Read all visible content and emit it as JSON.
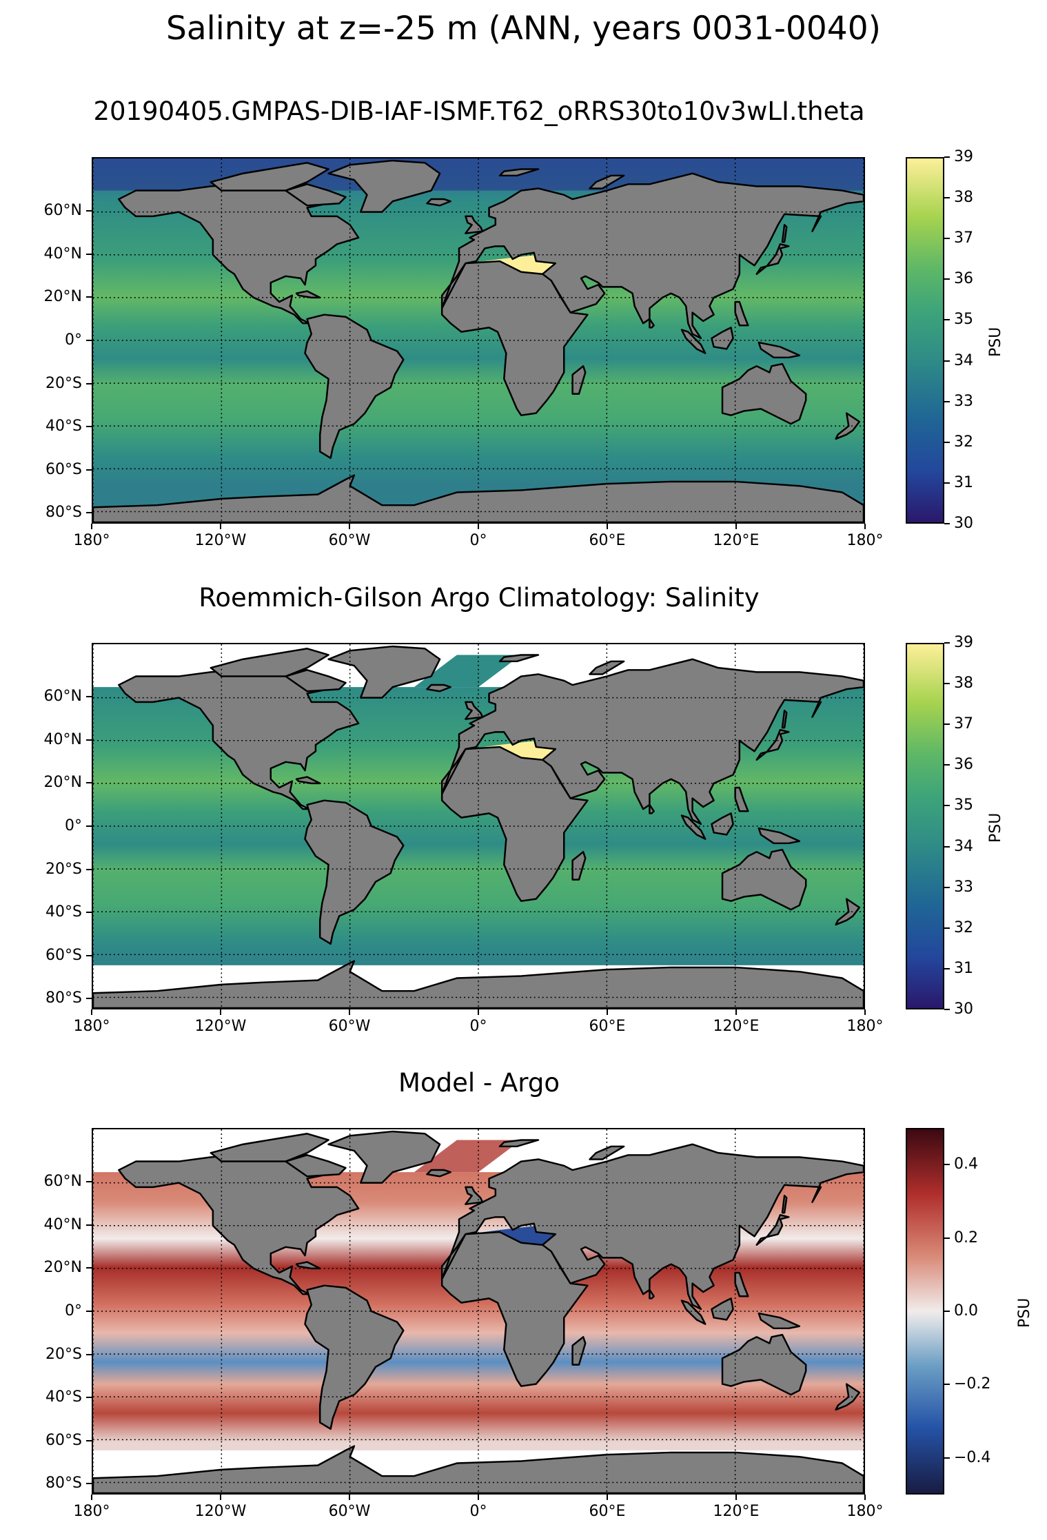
{
  "suptitle": "Salinity at z=-25 m (ANN, years 0031-0040)",
  "panels": [
    {
      "id": "model",
      "title": "20190405.GMPAS-DIB-IAF-ISMF.T62_oRRS30to10v3wLI.theta",
      "colormap": "haline",
      "colorbar": {
        "label": "PSU",
        "ticks": [
          "39",
          "38",
          "37",
          "36",
          "35",
          "34",
          "33",
          "32",
          "31",
          "30"
        ],
        "range": [
          30,
          39
        ]
      }
    },
    {
      "id": "obs",
      "title": "Roemmich-Gilson Argo Climatology: Salinity",
      "colormap": "haline",
      "colorbar": {
        "label": "PSU",
        "ticks": [
          "39",
          "38",
          "37",
          "36",
          "35",
          "34",
          "33",
          "32",
          "31",
          "30"
        ],
        "range": [
          30,
          39
        ]
      }
    },
    {
      "id": "bias",
      "title": "Model - Argo",
      "colormap": "balance",
      "colorbar": {
        "label": "PSU",
        "ticks": [
          "0.4",
          "0.2",
          "0.0",
          "−0.2",
          "−0.4"
        ],
        "range": [
          -0.5,
          0.5
        ]
      }
    }
  ],
  "axes": {
    "lat_ticks": [
      "60°N",
      "40°N",
      "20°N",
      "0°",
      "20°S",
      "40°S",
      "60°S",
      "80°S"
    ],
    "lon_ticks": [
      "180°",
      "120°W",
      "60°W",
      "0°",
      "60°E",
      "120°E",
      "180°"
    ]
  },
  "colors": {
    "land": "#808080",
    "missing": "#ffffff",
    "haline_low": "#2a186c",
    "haline_mid": "#2f8c86",
    "haline_high": "#fdef9a",
    "balance_low": "#181c43",
    "balance_mid": "#f1eceb",
    "balance_high": "#3c0912"
  }
}
